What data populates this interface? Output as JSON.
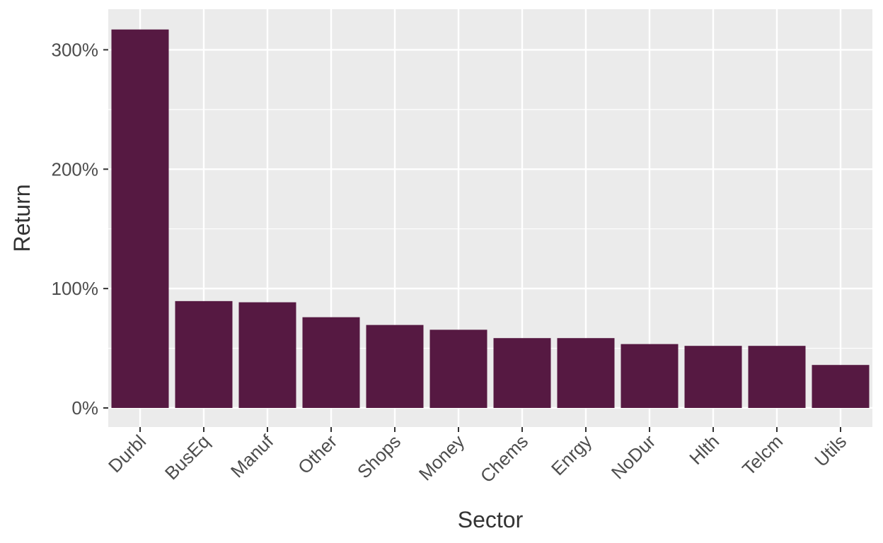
{
  "chart_data": {
    "type": "bar",
    "xlabel": "Sector",
    "ylabel": "Return",
    "categories": [
      "Durbl",
      "BusEq",
      "Manuf",
      "Other",
      "Shops",
      "Money",
      "Chems",
      "Enrgy",
      "NoDur",
      "Hlth",
      "Telcm",
      "Utils"
    ],
    "values": [
      3.17,
      0.895,
      0.885,
      0.76,
      0.695,
      0.655,
      0.585,
      0.585,
      0.535,
      0.52,
      0.52,
      0.36
    ],
    "ylim": [
      -0.16,
      3.34
    ],
    "yticks": [
      0,
      1,
      2,
      3
    ],
    "ytick_labels": [
      "0%",
      "100%",
      "200%",
      "300%"
    ],
    "grid": true,
    "legend": "none",
    "colors": {
      "bar": "#561942",
      "panel": "#ebebeb",
      "grid": "#ffffff",
      "text": "#4d4d4d",
      "tick": "#333333"
    }
  }
}
